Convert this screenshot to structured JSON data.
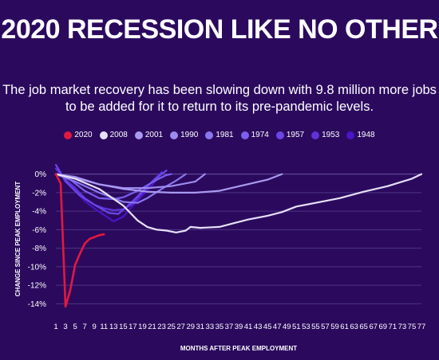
{
  "title": "2020 RECESSION LIKE NO OTHER",
  "subtitle": "The job market recovery has been slowing down with 9.8 million more jobs to be added for it to return to its pre-pandemic levels.",
  "chart_data": {
    "type": "line",
    "xlabel": "MONTHS AFTER PEAK EMPLOYMENT",
    "ylabel": "CHANGE SINCE PEAK EMPLOYMENT",
    "xlim": [
      1,
      77
    ],
    "ylim": [
      -15,
      1
    ],
    "x_ticks": [
      1,
      3,
      5,
      7,
      9,
      11,
      13,
      15,
      17,
      19,
      21,
      23,
      25,
      27,
      29,
      31,
      33,
      35,
      37,
      39,
      41,
      43,
      45,
      47,
      49,
      51,
      53,
      55,
      57,
      59,
      61,
      63,
      65,
      67,
      69,
      71,
      73,
      75,
      77
    ],
    "y_ticks": [
      0,
      -2,
      -4,
      -6,
      -8,
      -10,
      -12,
      -14
    ],
    "y_tick_labels": [
      "0%",
      "-2%",
      "-4%",
      "-6%",
      "-8%",
      "-10%",
      "-12%",
      "-14%"
    ],
    "grid": "horizontal",
    "legend_position": "top-center",
    "series": [
      {
        "name": "2020",
        "color": "#e3183f",
        "x": [
          1,
          2,
          3,
          4,
          5,
          6,
          7,
          8,
          9,
          10,
          11
        ],
        "y": [
          0,
          -1.0,
          -14.3,
          -12.5,
          -9.8,
          -8.6,
          -7.5,
          -7.0,
          -6.8,
          -6.6,
          -6.5
        ]
      },
      {
        "name": "2008",
        "color": "#e6e0f7",
        "x": [
          1,
          5,
          10,
          15,
          18,
          20,
          22,
          24,
          26,
          28,
          29,
          31,
          35,
          38,
          41,
          45,
          48,
          51,
          55,
          60,
          65,
          70,
          75,
          77
        ],
        "y": [
          0,
          -0.5,
          -1.6,
          -3.4,
          -5.0,
          -5.7,
          -6.0,
          -6.1,
          -6.3,
          -6.1,
          -5.7,
          -5.8,
          -5.7,
          -5.3,
          -4.9,
          -4.5,
          -4.1,
          -3.5,
          -3.1,
          -2.6,
          -1.9,
          -1.3,
          -0.5,
          0
        ]
      },
      {
        "name": "2001",
        "color": "#a99af0",
        "x": [
          1,
          5,
          10,
          15,
          20,
          25,
          30,
          35,
          40,
          45,
          48
        ],
        "y": [
          0,
          -0.4,
          -1.1,
          -1.6,
          -1.9,
          -2.0,
          -2.0,
          -1.8,
          -1.2,
          -0.6,
          0
        ]
      },
      {
        "name": "1990",
        "color": "#9d8bef",
        "x": [
          1,
          5,
          10,
          15,
          20,
          25,
          30,
          32
        ],
        "y": [
          0,
          -0.3,
          -1.1,
          -1.5,
          -1.5,
          -1.3,
          -0.8,
          0
        ]
      },
      {
        "name": "1981",
        "color": "#8a76ee",
        "x": [
          1,
          5,
          10,
          15,
          18,
          20,
          23,
          26,
          28
        ],
        "y": [
          0,
          -0.8,
          -2.0,
          -3.0,
          -3.1,
          -2.6,
          -1.6,
          -0.7,
          0
        ]
      },
      {
        "name": "1974",
        "color": "#7b5ff0",
        "x": [
          1,
          4,
          7,
          10,
          13,
          15,
          18,
          20,
          22,
          24,
          25
        ],
        "y": [
          0,
          -0.6,
          -1.8,
          -2.6,
          -2.7,
          -2.5,
          -1.8,
          -1.2,
          -0.6,
          -0.1,
          0
        ]
      },
      {
        "name": "1957",
        "color": "#6b45e8",
        "x": [
          1,
          3,
          6,
          9,
          12,
          14,
          16,
          18,
          20,
          22,
          24
        ],
        "y": [
          1.0,
          -0.8,
          -2.3,
          -3.3,
          -4.2,
          -4.3,
          -3.4,
          -2.4,
          -1.3,
          -0.4,
          0.4
        ]
      },
      {
        "name": "1953",
        "color": "#5e34d8",
        "x": [
          1,
          3,
          5,
          7,
          9,
          11,
          13,
          15,
          17,
          19,
          21,
          23
        ],
        "y": [
          0.6,
          -0.6,
          -1.5,
          -2.6,
          -3.3,
          -3.7,
          -3.9,
          -3.8,
          -3.2,
          -2.0,
          -0.8,
          0.2
        ]
      },
      {
        "name": "1948",
        "color": "#4a14c8",
        "x": [
          1,
          3,
          5,
          7,
          9,
          11,
          13,
          15,
          17,
          19,
          21,
          23
        ],
        "y": [
          1.0,
          -0.6,
          -1.8,
          -2.9,
          -3.7,
          -4.4,
          -5.1,
          -4.6,
          -3.4,
          -2.3,
          -1.2,
          0.1
        ]
      }
    ]
  }
}
